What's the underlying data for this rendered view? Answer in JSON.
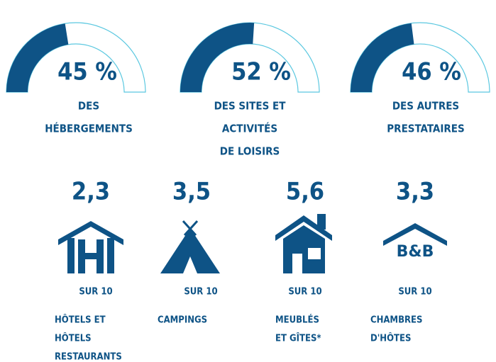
{
  "gauges": [
    {
      "value": 45,
      "value_label": "45 %",
      "label": [
        "DES",
        "HÉBERGEMENTS"
      ]
    },
    {
      "value": 52,
      "value_label": "52 %",
      "label": [
        "DES SITES ET",
        "ACTIVITÉS",
        "DE LOISIRS"
      ]
    },
    {
      "value": 46,
      "value_label": "46 %",
      "label": [
        "DES AUTRES",
        "PRESTATAIRES"
      ]
    }
  ],
  "ratings": [
    {
      "score": "2,3",
      "scale": "SUR 10",
      "label": [
        "HÔTELS ET",
        "HÔTELS",
        "RESTAURANTS"
      ]
    },
    {
      "score": "3,5",
      "scale": "SUR 10",
      "label": [
        "CAMPINGS"
      ]
    },
    {
      "score": "5,6",
      "scale": "SUR 10",
      "label": [
        "MEUBLÉS",
        "ET GÎTES*"
      ]
    },
    {
      "score": "3,3",
      "scale": "SUR 10",
      "label": [
        "CHAMBRES",
        "D'HÔTES"
      ]
    }
  ]
}
